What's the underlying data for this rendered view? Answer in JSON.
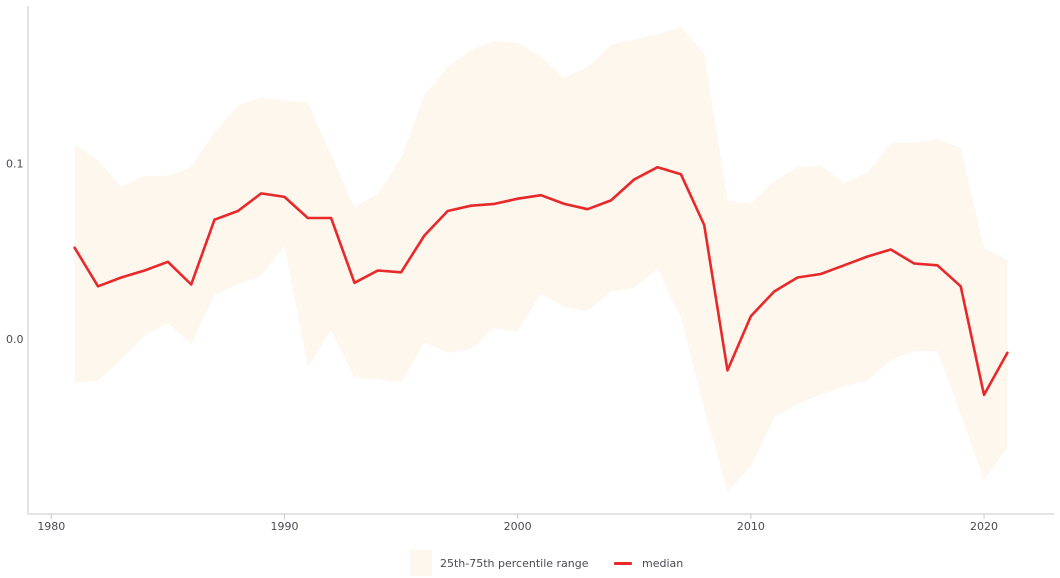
{
  "colors": {
    "band": "#fdf7ee",
    "median": "#e8292b",
    "axis": "#c8c8cc",
    "text": "#4a4a55"
  },
  "chart_data": {
    "type": "area",
    "x": [
      1981,
      1982,
      1983,
      1984,
      1985,
      1986,
      1987,
      1988,
      1989,
      1990,
      1991,
      1992,
      1993,
      1994,
      1995,
      1996,
      1997,
      1998,
      1999,
      2000,
      2001,
      2002,
      2003,
      2004,
      2005,
      2006,
      2007,
      2008,
      2009,
      2010,
      2011,
      2012,
      2013,
      2014,
      2015,
      2016,
      2017,
      2018,
      2019,
      2020,
      2021
    ],
    "series": [
      {
        "name": "25th-75th percentile range",
        "kind": "band",
        "lower": [
          -0.025,
          -0.024,
          -0.012,
          0.002,
          0.009,
          -0.003,
          0.025,
          0.031,
          0.036,
          0.053,
          -0.016,
          0.005,
          -0.022,
          -0.023,
          -0.025,
          -0.002,
          -0.008,
          -0.006,
          0.006,
          0.004,
          0.026,
          0.018,
          0.016,
          0.027,
          0.029,
          0.04,
          0.012,
          -0.04,
          -0.087,
          -0.073,
          -0.045,
          -0.037,
          -0.032,
          -0.027,
          -0.024,
          -0.012,
          -0.007,
          -0.007,
          -0.043,
          -0.081,
          -0.062
        ],
        "upper": [
          0.111,
          0.102,
          0.087,
          0.093,
          0.093,
          0.098,
          0.118,
          0.133,
          0.138,
          0.136,
          0.135,
          0.105,
          0.075,
          0.083,
          0.103,
          0.139,
          0.155,
          0.165,
          0.17,
          0.169,
          0.161,
          0.149,
          0.155,
          0.168,
          0.171,
          0.174,
          0.178,
          0.163,
          0.079,
          0.077,
          0.09,
          0.098,
          0.099,
          0.089,
          0.095,
          0.112,
          0.112,
          0.114,
          0.109,
          0.052,
          0.045
        ]
      },
      {
        "name": "median",
        "kind": "line",
        "values": [
          0.052,
          0.03,
          0.035,
          0.039,
          0.044,
          0.031,
          0.068,
          0.073,
          0.083,
          0.081,
          0.069,
          0.069,
          0.032,
          0.039,
          0.038,
          0.059,
          0.073,
          0.076,
          0.077,
          0.08,
          0.082,
          0.077,
          0.074,
          0.079,
          0.091,
          0.098,
          0.094,
          0.065,
          -0.018,
          0.013,
          0.027,
          0.035,
          0.037,
          0.042,
          0.047,
          0.051,
          0.043,
          0.042,
          0.03,
          -0.032,
          -0.008
        ]
      }
    ],
    "xticks": [
      1980,
      1990,
      2000,
      2010,
      2020
    ],
    "yticks": [
      0.0,
      0.1
    ],
    "ytick_labels": [
      "0.0",
      "0.1"
    ],
    "xlim": [
      1979.0,
      2023.0
    ],
    "ylim": [
      -0.1,
      0.19
    ],
    "grid": false,
    "legend_position": "bottom"
  }
}
